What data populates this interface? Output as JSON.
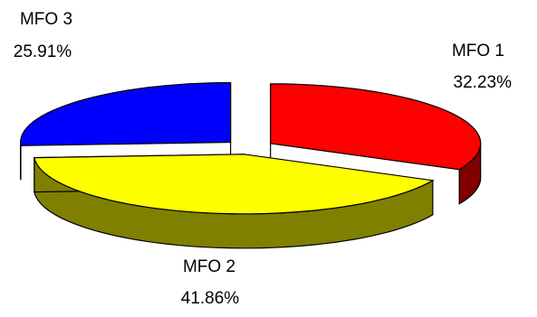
{
  "chart_data": {
    "type": "pie",
    "title": "",
    "categories": [
      "MFO 1",
      "MFO 2",
      "MFO 3"
    ],
    "values": [
      32.23,
      41.86,
      25.91
    ],
    "value_labels": [
      "32.23%",
      "41.86%",
      "25.91%"
    ],
    "legend": "none",
    "style": "3d-exploded",
    "colors": {
      "MFO 1": {
        "top": "#ff0000",
        "side": "#800000"
      },
      "MFO 2": {
        "top": "#ffff00",
        "side": "#808000"
      },
      "MFO 3": {
        "top": "#0000ff",
        "side": "#000080"
      }
    }
  }
}
